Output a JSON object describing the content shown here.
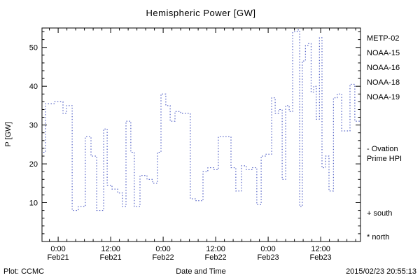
{
  "chart_data": {
    "type": "line",
    "title": "Hemispheric Power [GW]",
    "xlabel": "Date and Time",
    "ylabel": "P [GW]",
    "ylim": [
      0,
      55
    ],
    "yticks": [
      10,
      20,
      30,
      40,
      50
    ],
    "y_minor_step": 2,
    "xlim_hours": [
      -3.7,
      69.1
    ],
    "x_unit": "hours since 2015-02-21 00:00",
    "x_minor_step_hours": 2,
    "grid": false,
    "legend_position": "right",
    "xticks": [
      {
        "hour": 0,
        "time": "0:00",
        "date": "Feb21"
      },
      {
        "hour": 12,
        "time": "12:00",
        "date": "Feb21"
      },
      {
        "hour": 24,
        "time": "0:00",
        "date": "Feb22"
      },
      {
        "hour": 36,
        "time": "12:00",
        "date": "Feb22"
      },
      {
        "hour": 48,
        "time": "0:00",
        "date": "Feb23"
      },
      {
        "hour": 60,
        "time": "12:00",
        "date": "Feb23"
      }
    ],
    "series": [
      {
        "name": "Ovation Prime HPI",
        "color": "#3344bb",
        "style": "dotted-step",
        "end_hour": 69.1,
        "steps_hour_gw": [
          [
            -3.4,
            23
          ],
          [
            -2.9,
            35.5
          ],
          [
            -0.8,
            36
          ],
          [
            1.1,
            33
          ],
          [
            1.9,
            35
          ],
          [
            3.2,
            8
          ],
          [
            4.6,
            9
          ],
          [
            6.2,
            27
          ],
          [
            7.5,
            22
          ],
          [
            8.8,
            8
          ],
          [
            10.4,
            29
          ],
          [
            11.2,
            14.5
          ],
          [
            12.3,
            13.5
          ],
          [
            13.6,
            12.5
          ],
          [
            14.7,
            9
          ],
          [
            15.5,
            31
          ],
          [
            16.6,
            23
          ],
          [
            17.4,
            9
          ],
          [
            18.7,
            17
          ],
          [
            20.3,
            16
          ],
          [
            21.6,
            15
          ],
          [
            22.7,
            23
          ],
          [
            23.5,
            38
          ],
          [
            24.6,
            35
          ],
          [
            25.6,
            31
          ],
          [
            26.7,
            33.5
          ],
          [
            28,
            33
          ],
          [
            29.3,
            33
          ],
          [
            30.2,
            11
          ],
          [
            31.5,
            10.5
          ],
          [
            33.1,
            18
          ],
          [
            34.2,
            19
          ],
          [
            35.5,
            18.5
          ],
          [
            36.6,
            27
          ],
          [
            37.9,
            27
          ],
          [
            39.5,
            19
          ],
          [
            40.6,
            13
          ],
          [
            41.9,
            19.5
          ],
          [
            43,
            18.5
          ],
          [
            44.3,
            19
          ],
          [
            45.4,
            9.5
          ],
          [
            46.4,
            22
          ],
          [
            47.5,
            22.5
          ],
          [
            48.8,
            37
          ],
          [
            49.6,
            33
          ],
          [
            50.4,
            34
          ],
          [
            51.2,
            16
          ],
          [
            52,
            35
          ],
          [
            52.8,
            33.5
          ],
          [
            53.6,
            54
          ],
          [
            54.6,
            54.5
          ],
          [
            55.2,
            9
          ],
          [
            55.8,
            46.5
          ],
          [
            56.5,
            50.5
          ],
          [
            57.1,
            51
          ],
          [
            57.8,
            38.5
          ],
          [
            58.4,
            40
          ],
          [
            59,
            31.5
          ],
          [
            59.7,
            52.5
          ],
          [
            60.3,
            19
          ],
          [
            61.1,
            22
          ],
          [
            61.9,
            13
          ],
          [
            62.9,
            37
          ],
          [
            63.8,
            38
          ],
          [
            64.8,
            28.5
          ],
          [
            65.8,
            28.5
          ],
          [
            66.7,
            40.5
          ],
          [
            67.8,
            31
          ]
        ]
      }
    ]
  },
  "legend": [
    {
      "label": "METP-02",
      "color": "#000000"
    },
    {
      "label": "NOAA-15",
      "color": "#0000ee"
    },
    {
      "label": "NOAA-16",
      "color": "#00bbee"
    },
    {
      "label": "NOAA-18",
      "color": "#00cc66"
    },
    {
      "label": "NOAA-19",
      "color": "#ff9900"
    }
  ],
  "annotations": {
    "ovation_line1": "- Ovation",
    "ovation_line2": "Prime HPI",
    "ovation_color": "#2233cc",
    "south_marker": "+ south",
    "north_marker": "* north"
  },
  "footer": {
    "left": "Plot: CCMC",
    "right": "2015/02/23 20:55:13",
    "accent_color": "#dd0000"
  }
}
